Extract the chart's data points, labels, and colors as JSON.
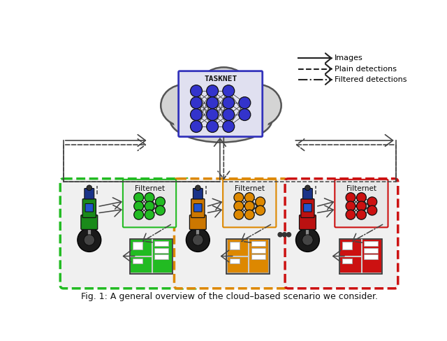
{
  "title": "Fig. 1: A general overview of the cloud–based scenario we consider.",
  "tasknet_label": "TASKNET",
  "filternet_label": "Filternet",
  "cloud_color": "#d4d4d4",
  "cloud_edge": "#555555",
  "tasknet_box_color": "#3333bb",
  "neural_node_color": "#3333cc",
  "background": "#ffffff",
  "domain_colors": [
    "#22bb22",
    "#dd8800",
    "#cc1111"
  ],
  "domain_node_colors": [
    "#22bb22",
    "#dd8800",
    "#cc1111"
  ],
  "robot_body_colors": [
    "#1a8a1a",
    "#cc7700",
    "#bb1111"
  ],
  "building_colors": [
    "#22bb22",
    "#dd8800",
    "#cc1111"
  ],
  "legend_items": [
    {
      "label": "Images",
      "ls": "-"
    },
    {
      "label": "Plain detections",
      "ls": "--"
    },
    {
      "label": "Filtered detections",
      "ls": "-."
    }
  ]
}
